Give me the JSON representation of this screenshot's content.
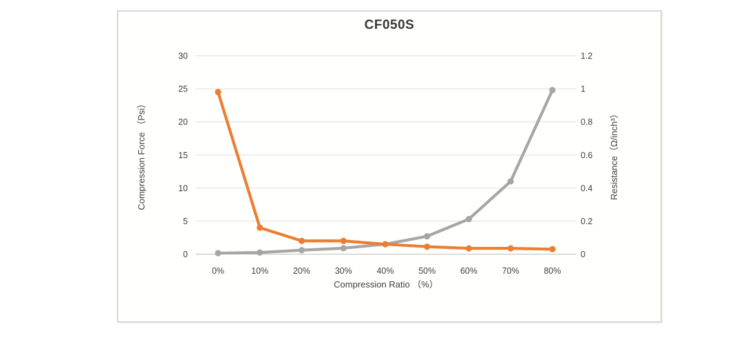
{
  "chart": {
    "frame_border_color": "#d8d8d4",
    "background": "#fffffd",
    "colors": {
      "force_series": "#a6a6a6",
      "resistance_series": "#ed7d31",
      "gridline": "#dedede",
      "axis_line": "#bfbfbf",
      "text": "#3f3f3f",
      "title_text": "#383838"
    }
  },
  "chart_data": {
    "type": "line",
    "title": "CF050S",
    "categories": [
      "0%",
      "10%",
      "20%",
      "30%",
      "40%",
      "50%",
      "60%",
      "70%",
      "80%"
    ],
    "xlabel": "Compression Ratio （%）",
    "left_axis": {
      "label": "Compression Force （Psi）",
      "min": 0,
      "max": 30,
      "step": 5,
      "ticks": [
        "0",
        "5",
        "10",
        "15",
        "20",
        "25",
        "30"
      ]
    },
    "right_axis": {
      "label": "Resistance（Ω/inch³）",
      "min": 0,
      "max": 1.2,
      "step": 0.2,
      "ticks": [
        "0",
        "0.2",
        "0.4",
        "0.6",
        "0.8",
        "1",
        "1.2"
      ]
    },
    "series": [
      {
        "name": "Compression Force",
        "axis": "left",
        "color": "#a6a6a6",
        "values": [
          0.15,
          0.25,
          0.6,
          0.9,
          1.5,
          2.7,
          5.3,
          11,
          24.8
        ]
      },
      {
        "name": "Resistance",
        "axis": "right",
        "color": "#ed7d31",
        "values": [
          0.98,
          0.16,
          0.08,
          0.08,
          0.06,
          0.045,
          0.035,
          0.035,
          0.03
        ]
      }
    ],
    "grid": true,
    "legend": "none"
  }
}
